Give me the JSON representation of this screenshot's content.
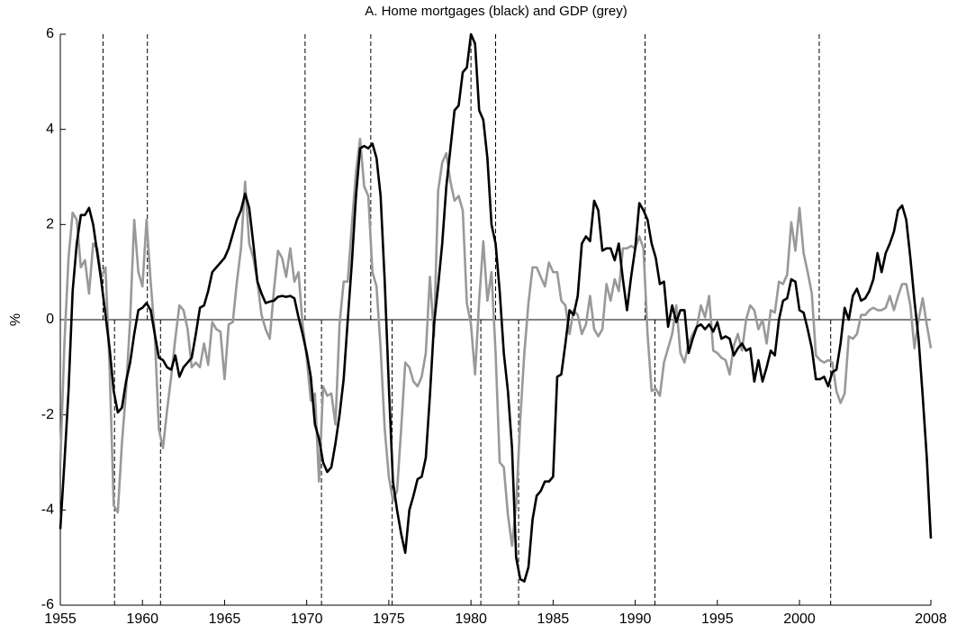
{
  "chart_data": {
    "type": "line",
    "title": "A. Home mortgages (black) and GDP (grey)",
    "y_label": "%",
    "xlim": [
      1955,
      2008
    ],
    "xticks": [
      1955,
      1960,
      1965,
      1970,
      1975,
      1980,
      1985,
      1990,
      1995,
      2000,
      2008
    ],
    "ylim": [
      -6,
      6
    ],
    "yticks": [
      -6,
      -4,
      -2,
      0,
      2,
      4,
      6
    ],
    "zero_line": true,
    "peaks": [
      1957.6,
      1960.3,
      1969.9,
      1973.9,
      1980.0,
      1981.5,
      1990.6,
      2001.2
    ],
    "troughs": [
      1958.3,
      1961.1,
      1970.9,
      1975.2,
      1980.6,
      1982.9,
      1991.2,
      2001.9
    ],
    "x": [
      1955,
      1955.25,
      1955.5,
      1955.75,
      1956,
      1956.25,
      1956.5,
      1956.75,
      1957,
      1957.25,
      1957.5,
      1957.75,
      1958,
      1958.25,
      1958.5,
      1958.75,
      1959,
      1959.25,
      1959.5,
      1959.75,
      1960,
      1960.25,
      1960.5,
      1960.75,
      1961,
      1961.25,
      1961.5,
      1961.75,
      1962,
      1962.25,
      1962.5,
      1962.75,
      1963,
      1963.25,
      1963.5,
      1963.75,
      1964,
      1964.25,
      1964.5,
      1964.75,
      1965,
      1965.25,
      1965.5,
      1965.75,
      1966,
      1966.25,
      1966.5,
      1966.75,
      1967,
      1967.25,
      1967.5,
      1967.75,
      1968,
      1968.25,
      1968.5,
      1968.75,
      1969,
      1969.25,
      1969.5,
      1969.75,
      1970,
      1970.25,
      1970.5,
      1970.75,
      1971,
      1971.25,
      1971.5,
      1971.75,
      1972,
      1972.25,
      1972.5,
      1972.75,
      1973,
      1973.25,
      1973.5,
      1973.75,
      1974,
      1974.25,
      1974.5,
      1974.75,
      1975,
      1975.25,
      1975.5,
      1975.75,
      1976,
      1976.25,
      1976.5,
      1976.75,
      1977,
      1977.25,
      1977.5,
      1977.75,
      1978,
      1978.25,
      1978.5,
      1978.75,
      1979,
      1979.25,
      1979.5,
      1979.75,
      1980,
      1980.25,
      1980.5,
      1980.75,
      1981,
      1981.25,
      1981.5,
      1981.75,
      1982,
      1982.25,
      1982.5,
      1982.75,
      1983,
      1983.25,
      1983.5,
      1983.75,
      1984,
      1984.25,
      1984.5,
      1984.75,
      1985,
      1985.25,
      1985.5,
      1985.75,
      1986,
      1986.25,
      1986.5,
      1986.75,
      1987,
      1987.25,
      1987.5,
      1987.75,
      1988,
      1988.25,
      1988.5,
      1988.75,
      1989,
      1989.25,
      1989.5,
      1989.75,
      1990,
      1990.25,
      1990.5,
      1990.75,
      1991,
      1991.25,
      1991.5,
      1991.75,
      1992,
      1992.25,
      1992.5,
      1992.75,
      1993,
      1993.25,
      1993.5,
      1993.75,
      1994,
      1994.25,
      1994.5,
      1994.75,
      1995,
      1995.25,
      1995.5,
      1995.75,
      1996,
      1996.25,
      1996.5,
      1996.75,
      1997,
      1997.25,
      1997.5,
      1997.75,
      1998,
      1998.25,
      1998.5,
      1998.75,
      1999,
      1999.25,
      1999.5,
      1999.75,
      2000,
      2000.25,
      2000.5,
      2000.75,
      2001,
      2001.25,
      2001.5,
      2001.75,
      2002,
      2002.25,
      2002.5,
      2002.75,
      2003,
      2003.25,
      2003.5,
      2003.75,
      2004,
      2004.25,
      2004.5,
      2004.75,
      2005,
      2005.25,
      2005.5,
      2005.75,
      2006,
      2006.25,
      2006.5,
      2006.75,
      2007,
      2007.25,
      2007.5,
      2007.75,
      2008
    ],
    "series": [
      {
        "name": "GDP",
        "color": "#999999",
        "values": [
          -3.0,
          -0.5,
          1.3,
          2.25,
          2.1,
          1.1,
          1.25,
          0.55,
          1.6,
          1.5,
          0.9,
          1.1,
          -1.0,
          -3.9,
          -4.05,
          -2.6,
          -1.5,
          0.0,
          2.1,
          1.0,
          0.7,
          2.1,
          0.8,
          -0.3,
          -2.3,
          -2.7,
          -1.9,
          -1.2,
          -0.4,
          0.3,
          0.2,
          -0.2,
          -1.0,
          -0.9,
          -1.0,
          -0.5,
          -0.95,
          -0.05,
          -0.2,
          -0.25,
          -1.25,
          -0.1,
          -0.05,
          0.8,
          1.5,
          2.9,
          1.6,
          1.3,
          0.8,
          0.1,
          -0.2,
          -0.4,
          0.6,
          1.45,
          1.3,
          0.9,
          1.5,
          0.8,
          1.0,
          -0.1,
          -0.8,
          -1.7,
          -1.55,
          -3.4,
          -1.4,
          -1.6,
          -1.55,
          -2.2,
          -0.1,
          0.8,
          0.8,
          2.0,
          3.1,
          3.8,
          2.8,
          2.6,
          1.0,
          0.7,
          -0.6,
          -2.3,
          -3.3,
          -3.8,
          -3.6,
          -2.3,
          -0.9,
          -1.0,
          -1.3,
          -1.4,
          -1.2,
          -0.7,
          0.9,
          -0.35,
          2.7,
          3.3,
          3.5,
          2.9,
          2.5,
          2.6,
          2.3,
          0.35,
          -0.1,
          -1.15,
          0.4,
          1.65,
          0.4,
          1.0,
          -0.7,
          -3.0,
          -3.1,
          -4.1,
          -4.75,
          -3.9,
          -2.1,
          -0.7,
          0.35,
          1.1,
          1.1,
          0.9,
          0.7,
          1.2,
          1.0,
          1.0,
          0.4,
          0.3,
          -0.3,
          0.2,
          0.1,
          -0.3,
          -0.1,
          0.5,
          -0.2,
          -0.35,
          -0.2,
          0.75,
          0.4,
          0.85,
          0.6,
          1.5,
          1.5,
          1.55,
          1.5,
          1.75,
          1.5,
          -0.3,
          -1.5,
          -1.45,
          -1.6,
          -0.9,
          -0.6,
          -0.3,
          0.3,
          -0.7,
          -0.9,
          -0.5,
          -0.3,
          -0.15,
          0.3,
          0.05,
          0.5,
          -0.65,
          -0.7,
          -0.8,
          -0.85,
          -1.15,
          -0.55,
          -0.3,
          -0.65,
          0.0,
          0.3,
          0.2,
          -0.2,
          0.0,
          -0.5,
          0.2,
          0.15,
          0.8,
          0.75,
          0.95,
          2.05,
          1.45,
          2.35,
          1.4,
          1.0,
          0.55,
          -0.75,
          -0.85,
          -0.9,
          -0.85,
          -0.9,
          -1.5,
          -1.75,
          -1.55,
          -0.35,
          -0.4,
          -0.3,
          0.1,
          0.1,
          0.2,
          0.25,
          0.2,
          0.2,
          0.25,
          0.5,
          0.2,
          0.5,
          0.75,
          0.75,
          0.3,
          -0.6,
          0.0,
          0.45,
          -0.1,
          -0.6
        ]
      },
      {
        "name": "Home mortgages",
        "color": "#000000",
        "values": [
          -4.4,
          -3.0,
          -1.5,
          0.6,
          1.6,
          2.2,
          2.2,
          2.35,
          2.0,
          1.4,
          0.8,
          0.1,
          -0.6,
          -1.5,
          -1.95,
          -1.85,
          -1.3,
          -0.9,
          -0.3,
          0.2,
          0.25,
          0.35,
          0.2,
          -0.3,
          -0.8,
          -0.85,
          -1.0,
          -1.05,
          -0.75,
          -1.2,
          -1.0,
          -0.9,
          -0.8,
          -0.3,
          0.25,
          0.3,
          0.6,
          1.0,
          1.1,
          1.2,
          1.3,
          1.5,
          1.8,
          2.1,
          2.3,
          2.65,
          2.35,
          1.6,
          0.8,
          0.55,
          0.35,
          0.38,
          0.4,
          0.48,
          0.5,
          0.48,
          0.5,
          0.45,
          0.05,
          -0.3,
          -0.7,
          -1.2,
          -2.2,
          -2.5,
          -3.0,
          -3.2,
          -3.1,
          -2.6,
          -2.0,
          -1.25,
          0.0,
          1.2,
          2.6,
          3.6,
          3.65,
          3.6,
          3.7,
          3.4,
          2.6,
          0.8,
          -1.4,
          -3.4,
          -4.0,
          -4.5,
          -4.9,
          -4.0,
          -3.7,
          -3.35,
          -3.3,
          -2.9,
          -1.6,
          -0.1,
          0.7,
          1.6,
          2.8,
          3.6,
          4.4,
          4.5,
          5.2,
          5.3,
          6.0,
          5.8,
          4.4,
          4.2,
          3.4,
          2.0,
          1.6,
          0.6,
          -0.7,
          -1.5,
          -2.7,
          -5.0,
          -5.45,
          -5.5,
          -5.2,
          -4.2,
          -3.7,
          -3.6,
          -3.4,
          -3.4,
          -3.3,
          -1.2,
          -1.15,
          -0.5,
          0.2,
          0.1,
          0.5,
          1.6,
          1.75,
          1.65,
          2.5,
          2.3,
          1.45,
          1.5,
          1.5,
          1.25,
          1.6,
          0.85,
          0.2,
          0.9,
          1.5,
          2.45,
          2.3,
          2.1,
          1.6,
          1.3,
          0.75,
          0.8,
          -0.15,
          0.3,
          -0.05,
          0.2,
          0.2,
          -0.7,
          -0.4,
          -0.15,
          -0.1,
          -0.2,
          -0.1,
          -0.25,
          -0.05,
          -0.4,
          -0.35,
          -0.4,
          -0.75,
          -0.6,
          -0.5,
          -0.65,
          -0.6,
          -1.3,
          -0.85,
          -1.3,
          -1.0,
          -0.65,
          -0.75,
          0.0,
          0.4,
          0.45,
          0.85,
          0.8,
          0.2,
          0.15,
          -0.2,
          -0.6,
          -1.25,
          -1.25,
          -1.2,
          -1.4,
          -1.1,
          -1.05,
          -0.5,
          0.25,
          0.0,
          0.5,
          0.65,
          0.4,
          0.45,
          0.6,
          0.85,
          1.4,
          1.0,
          1.4,
          1.6,
          1.85,
          2.3,
          2.4,
          2.1,
          1.3,
          0.4,
          -0.4,
          -1.6,
          -2.9,
          -4.6
        ]
      }
    ]
  }
}
